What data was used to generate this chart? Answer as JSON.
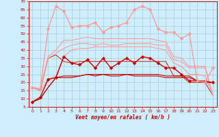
{
  "background_color": "#cceeff",
  "grid_color": "#aacccc",
  "xlabel": "Vent moyen/en rafales ( km/h )",
  "xlim": [
    -0.5,
    23.5
  ],
  "ylim": [
    5,
    70
  ],
  "yticks": [
    5,
    10,
    15,
    20,
    25,
    30,
    35,
    40,
    45,
    50,
    55,
    60,
    65,
    70
  ],
  "xticks": [
    0,
    1,
    2,
    3,
    4,
    5,
    6,
    7,
    8,
    9,
    10,
    11,
    12,
    13,
    14,
    15,
    16,
    17,
    18,
    19,
    20,
    21,
    22,
    23
  ],
  "x": [
    0,
    1,
    2,
    3,
    4,
    5,
    6,
    7,
    8,
    9,
    10,
    11,
    12,
    13,
    14,
    15,
    16,
    17,
    18,
    19,
    20,
    21,
    22,
    23
  ],
  "series": [
    {
      "y": [
        8,
        10,
        17,
        23,
        23,
        23,
        24,
        25,
        24,
        25,
        24,
        24,
        25,
        24,
        24,
        24,
        24,
        23,
        23,
        23,
        23,
        21,
        20,
        20
      ],
      "color": "#cc0000",
      "lw": 0.8,
      "marker": null,
      "zorder": 3
    },
    {
      "y": [
        8,
        10,
        17,
        23,
        24,
        24,
        24,
        25,
        25,
        25,
        25,
        25,
        25,
        25,
        25,
        25,
        25,
        24,
        24,
        24,
        24,
        21,
        21,
        20
      ],
      "color": "#cc0000",
      "lw": 0.8,
      "marker": null,
      "zorder": 3
    },
    {
      "y": [
        8,
        11,
        22,
        23,
        36,
        32,
        31,
        34,
        29,
        35,
        29,
        32,
        35,
        32,
        36,
        35,
        32,
        29,
        29,
        25,
        21,
        21,
        20,
        20
      ],
      "color": "#cc0000",
      "lw": 1.0,
      "marker": "D",
      "markersize": 2.5,
      "zorder": 4
    },
    {
      "y": [
        17,
        15,
        35,
        37,
        33,
        32,
        33,
        33,
        33,
        33,
        33,
        33,
        33,
        33,
        33,
        33,
        33,
        33,
        24,
        24,
        20,
        20,
        20,
        12
      ],
      "color": "#cc2200",
      "lw": 0.7,
      "marker": null,
      "zorder": 2
    },
    {
      "y": [
        17,
        15,
        22,
        24,
        36,
        40,
        41,
        41,
        42,
        42,
        42,
        42,
        42,
        42,
        42,
        42,
        41,
        40,
        32,
        30,
        25,
        25,
        24,
        12
      ],
      "color": "#ff9999",
      "lw": 0.8,
      "marker": null,
      "zorder": 2
    },
    {
      "y": [
        17,
        16,
        36,
        40,
        46,
        46,
        47,
        48,
        47,
        47,
        47,
        47,
        47,
        47,
        47,
        47,
        46,
        45,
        36,
        35,
        30,
        30,
        30,
        12
      ],
      "color": "#ff9999",
      "lw": 0.8,
      "marker": null,
      "zorder": 2
    },
    {
      "y": [
        17,
        16,
        35,
        38,
        41,
        43,
        44,
        44,
        43,
        44,
        43,
        43,
        44,
        44,
        44,
        44,
        43,
        43,
        34,
        33,
        29,
        29,
        29,
        12
      ],
      "color": "#ff9999",
      "lw": 0.8,
      "marker": null,
      "zorder": 2
    },
    {
      "y": [
        17,
        16,
        53,
        67,
        64,
        54,
        55,
        55,
        57,
        51,
        54,
        55,
        57,
        65,
        67,
        65,
        53,
        51,
        51,
        47,
        50,
        21,
        20,
        29
      ],
      "color": "#ff9999",
      "lw": 1.0,
      "marker": "D",
      "markersize": 2.5,
      "zorder": 5
    }
  ]
}
